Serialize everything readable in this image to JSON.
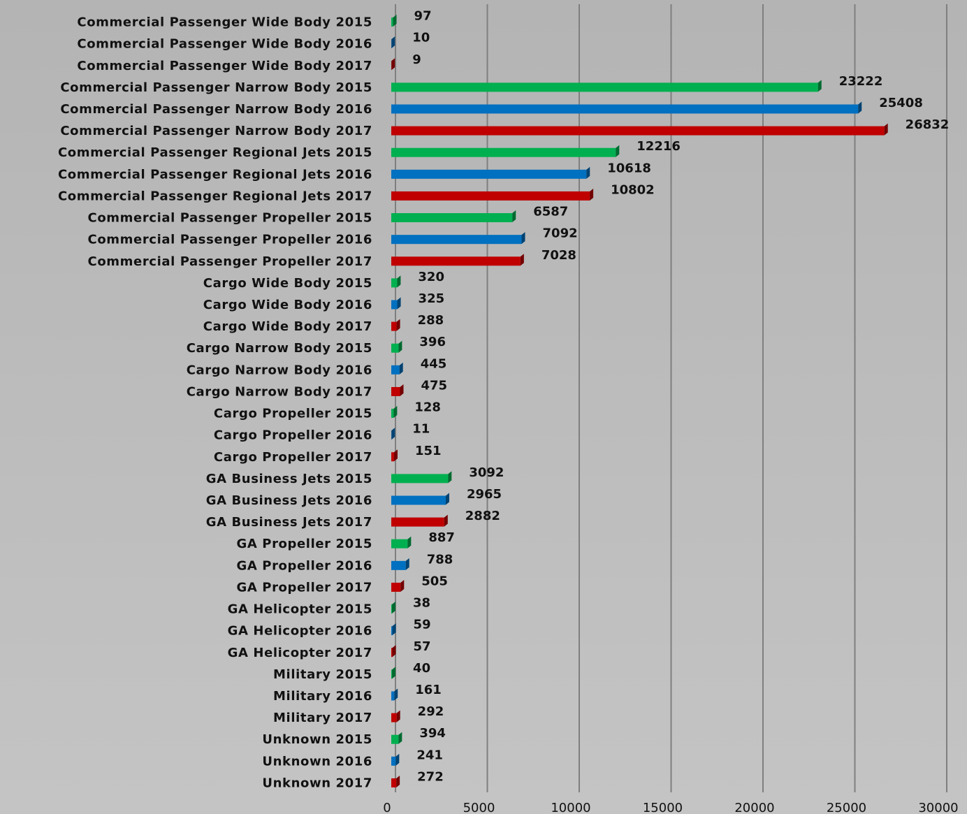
{
  "chart_data": {
    "type": "bar",
    "orientation": "horizontal",
    "categories": [
      "Commercial Passenger Wide Body 2015",
      "Commercial Passenger Wide Body 2016",
      "Commercial Passenger Wide Body 2017",
      "Commercial Passenger Narrow Body 2015",
      "Commercial Passenger Narrow Body 2016",
      "Commercial Passenger Narrow Body 2017",
      "Commercial Passenger Regional Jets 2015",
      "Commercial Passenger Regional Jets 2016",
      "Commercial Passenger Regional Jets 2017",
      "Commercial Passenger Propeller 2015",
      "Commercial Passenger Propeller 2016",
      "Commercial Passenger Propeller 2017",
      "Cargo Wide Body 2015",
      "Cargo Wide Body 2016",
      "Cargo Wide Body 2017",
      "Cargo Narrow Body 2015",
      "Cargo Narrow Body 2016",
      "Cargo Narrow Body 2017",
      "Cargo Propeller 2015",
      "Cargo Propeller 2016",
      "Cargo Propeller 2017",
      "GA Business Jets 2015",
      "GA Business Jets 2016",
      "GA Business Jets 2017",
      "GA Propeller 2015",
      "GA Propeller 2016",
      "GA Propeller 2017",
      "GA Helicopter 2015",
      "GA Helicopter 2016",
      "GA Helicopter 2017",
      "Military 2015",
      "Military 2016",
      "Military 2017",
      "Unknown 2015",
      "Unknown 2016",
      "Unknown 2017"
    ],
    "values": [
      97,
      10,
      9,
      23222,
      25408,
      26832,
      12216,
      10618,
      10802,
      6587,
      7092,
      7028,
      320,
      325,
      288,
      396,
      445,
      475,
      128,
      11,
      151,
      3092,
      2965,
      2882,
      887,
      788,
      505,
      38,
      59,
      57,
      40,
      161,
      292,
      394,
      241,
      272
    ],
    "colors": [
      "#00b050",
      "#0070c0",
      "#c00000"
    ],
    "xlim": [
      0,
      30000
    ],
    "xticks": [
      0,
      5000,
      10000,
      15000,
      20000,
      25000,
      30000
    ],
    "grid": true
  }
}
